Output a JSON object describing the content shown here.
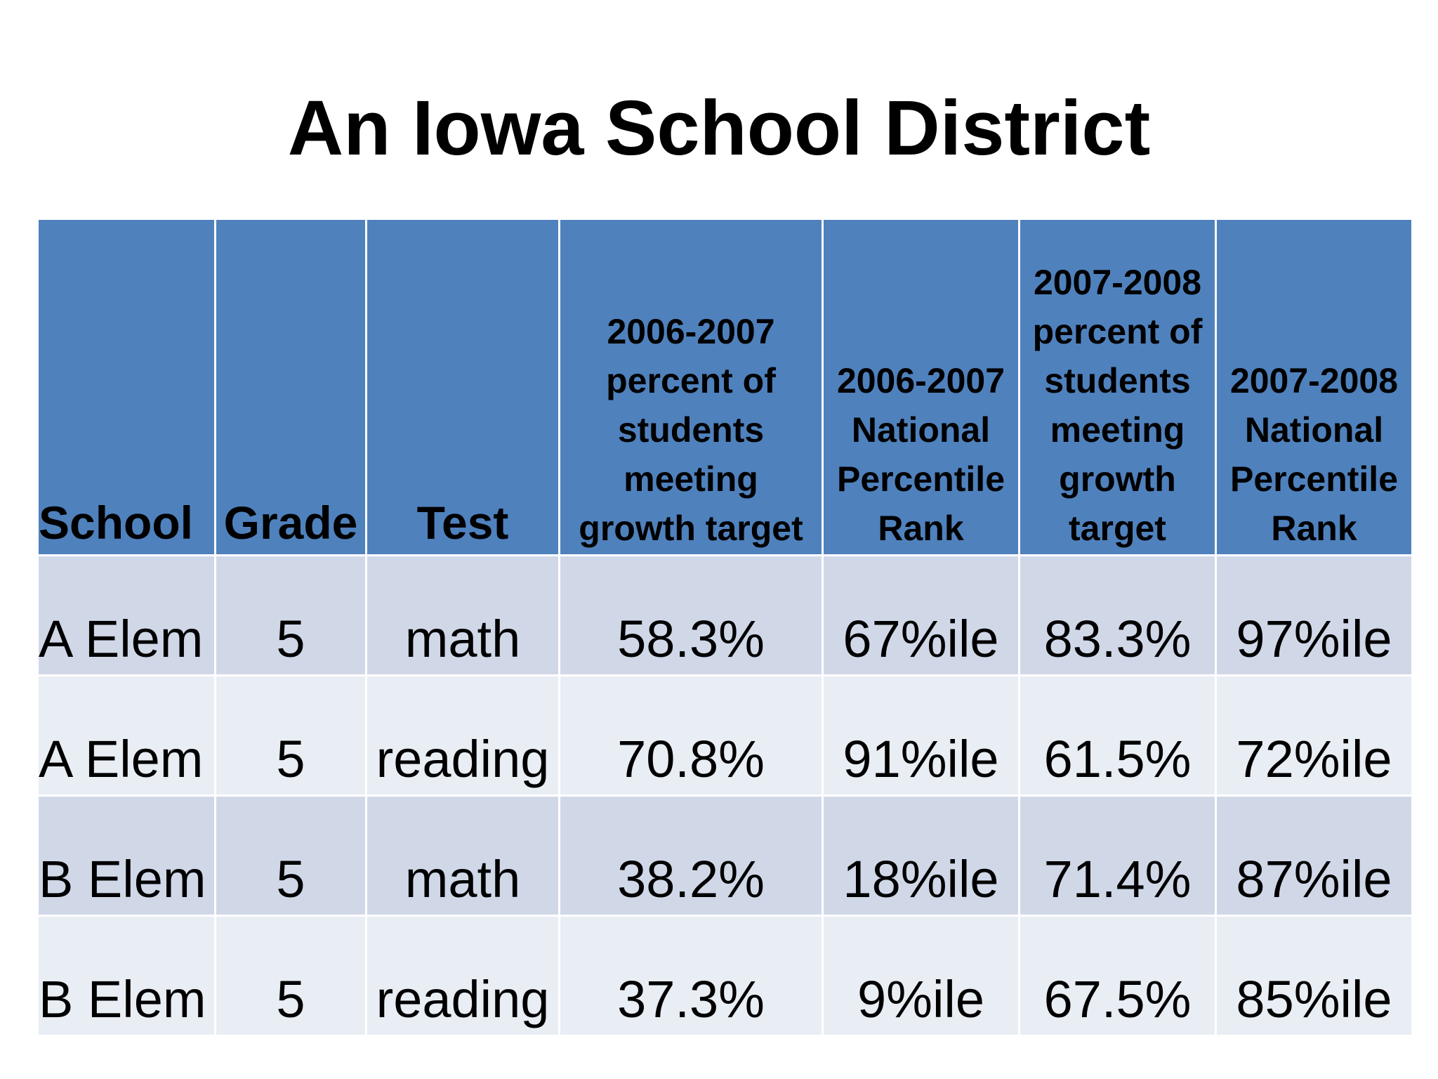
{
  "slide": {
    "title": "An Iowa School District"
  },
  "table": {
    "headers": [
      "School",
      "Grade",
      "Test",
      "2006-2007 percent of students meeting growth target",
      "2006-2007 National Percentile Rank",
      "2007-2008 percent of students meeting growth target",
      "2007-2008 National Percentile Rank"
    ],
    "rows": [
      [
        "A Elem",
        "5",
        "math",
        "58.3%",
        "67%ile",
        "83.3%",
        "97%ile"
      ],
      [
        "A Elem",
        "5",
        "reading",
        "70.8%",
        "91%ile",
        "61.5%",
        "72%ile"
      ],
      [
        "B Elem",
        "5",
        "math",
        "38.2%",
        "18%ile",
        "71.4%",
        "87%ile"
      ],
      [
        "B Elem",
        "5",
        "reading",
        "37.3%",
        "9%ile",
        "67.5%",
        "85%ile"
      ]
    ]
  },
  "colors": {
    "header_bg": "#4f81bd",
    "row_odd_bg": "#d0d8e8",
    "row_even_bg": "#e9edf4"
  }
}
